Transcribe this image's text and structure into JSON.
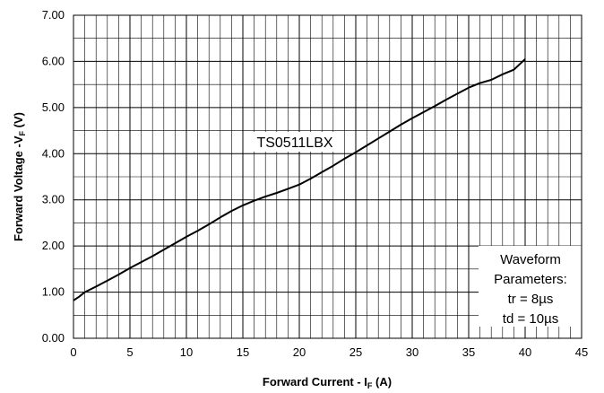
{
  "chart_data": {
    "type": "line",
    "xlabel": "Forward Current - I",
    "xlabel_sub": "F",
    "xlabel_unit": " (A)",
    "ylabel": "Forward Voltage -V",
    "ylabel_sub": "F",
    "ylabel_unit": " (V)",
    "xlim": [
      0,
      45
    ],
    "ylim": [
      0,
      7
    ],
    "x_ticks": [
      "0",
      "5",
      "10",
      "15",
      "20",
      "25",
      "30",
      "35",
      "40",
      "45"
    ],
    "y_ticks": [
      "0.00",
      "1.00",
      "2.00",
      "3.00",
      "4.00",
      "5.00",
      "6.00",
      "7.00"
    ],
    "grid": true,
    "series": [
      {
        "name": "TS0511LBX",
        "x": [
          0,
          0.5,
          1,
          2,
          3,
          4,
          5,
          6,
          7,
          8,
          9,
          10,
          11,
          12,
          13,
          14,
          15,
          16,
          17,
          18,
          19,
          20,
          21,
          22,
          23,
          24,
          25,
          26,
          27,
          28,
          29,
          30,
          31,
          32,
          33,
          34,
          35,
          36,
          37,
          38,
          39,
          40
        ],
        "y": [
          0.82,
          0.9,
          1.0,
          1.12,
          1.25,
          1.38,
          1.52,
          1.65,
          1.78,
          1.92,
          2.06,
          2.2,
          2.33,
          2.47,
          2.62,
          2.76,
          2.88,
          2.98,
          3.07,
          3.15,
          3.24,
          3.33,
          3.46,
          3.6,
          3.74,
          3.89,
          4.03,
          4.18,
          4.33,
          4.48,
          4.63,
          4.77,
          4.9,
          5.03,
          5.17,
          5.3,
          5.43,
          5.53,
          5.6,
          5.72,
          5.82,
          6.05
        ]
      }
    ],
    "annotation": {
      "lines": [
        "Waveform",
        "Parameters:",
        "tr = 8µs",
        "td = 10µs"
      ],
      "placement": "bottom-right"
    }
  }
}
